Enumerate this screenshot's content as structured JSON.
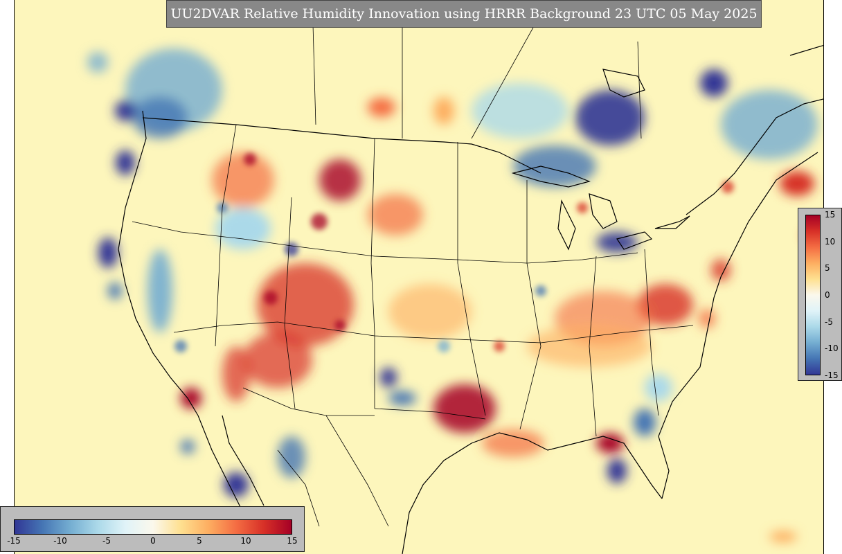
{
  "title": "UU2DVAR Relative Humidity Innovation using HRRR Background 23 UTC 05 May 2025",
  "colormap": {
    "name": "RdYlBu_r",
    "stops": [
      "#313695",
      "#4575b4",
      "#74add1",
      "#abd9e9",
      "#e0f3f8",
      "#fbf8ec",
      "#fee090",
      "#fdae61",
      "#f46d43",
      "#d73027",
      "#a50026"
    ],
    "background_neutral": "#fdf6bc"
  },
  "horizontal_colorbar": {
    "min": -15,
    "max": 15,
    "ticks": [
      "-15",
      "-10",
      "-5",
      "0",
      "5",
      "10",
      "15"
    ]
  },
  "vertical_colorbar": {
    "min": -15,
    "max": 15,
    "ticks": [
      "15",
      "10",
      "5",
      "0",
      "-5",
      "-10",
      "-15"
    ]
  }
}
